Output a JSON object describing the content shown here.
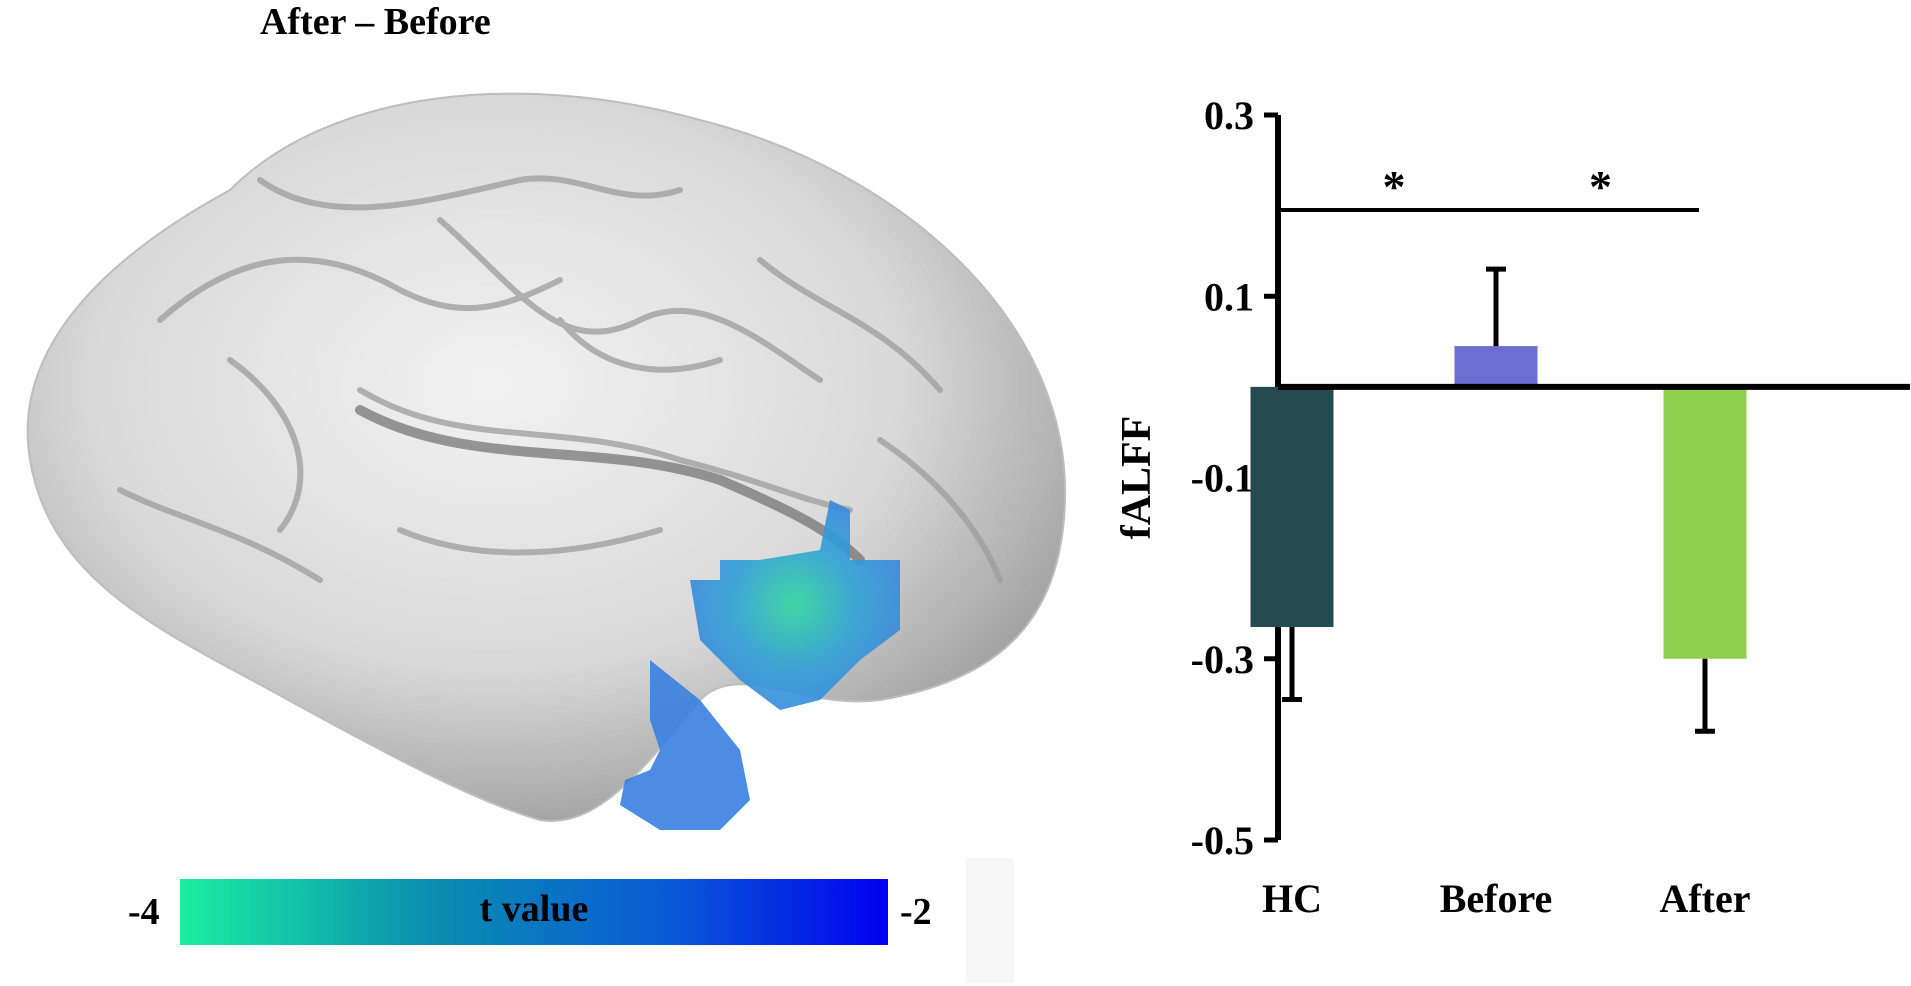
{
  "figure": {
    "brain_title": "After – Before",
    "colorbar": {
      "label": "t value",
      "min_label": "-4",
      "max_label": "-2"
    }
  },
  "chart_data": {
    "type": "bar",
    "categories": [
      "HC",
      "Before",
      "After"
    ],
    "values": [
      -0.265,
      0.045,
      -0.3
    ],
    "errors": [
      0.08,
      0.085,
      0.08
    ],
    "colors": [
      "#234b50",
      "#6d6dd2",
      "#8ecf4e"
    ],
    "ylabel": "fALFF",
    "ylim": [
      -0.5,
      0.3
    ],
    "yticks": [
      "0.3",
      "0.1",
      "-0.1",
      "-0.3",
      "-0.5"
    ],
    "significance": [
      {
        "from": "HC",
        "to": "Before",
        "label": "*"
      },
      {
        "from": "Before",
        "to": "After",
        "label": "*"
      }
    ]
  }
}
